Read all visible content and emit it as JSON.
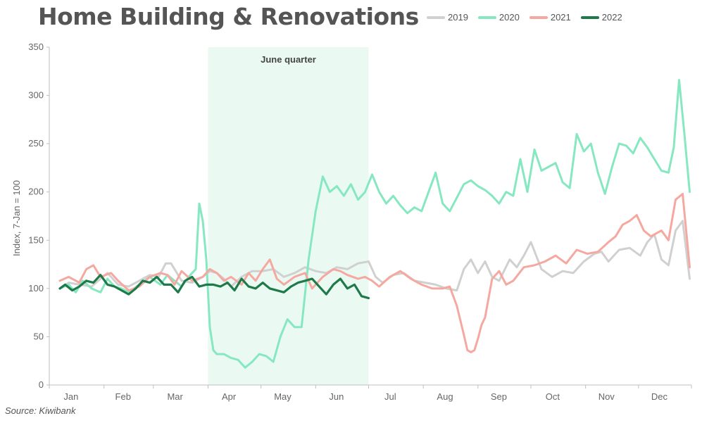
{
  "title": "Home Building & Renovations",
  "source": "Source: Kiwibank",
  "chart_data": {
    "type": "line",
    "ylabel": "Index, 7-Jan = 100",
    "xlabel": "",
    "ylim": [
      0,
      350
    ],
    "yticks": [
      0,
      50,
      100,
      150,
      200,
      250,
      300,
      350
    ],
    "xlim": [
      1,
      365
    ],
    "months": [
      {
        "label": "Jan",
        "day": 1
      },
      {
        "label": "Feb",
        "day": 32
      },
      {
        "label": "Mar",
        "day": 60
      },
      {
        "label": "Apr",
        "day": 91
      },
      {
        "label": "May",
        "day": 121
      },
      {
        "label": "Jun",
        "day": 152
      },
      {
        "label": "Jul",
        "day": 182
      },
      {
        "label": "Aug",
        "day": 213
      },
      {
        "label": "Sep",
        "day": 244
      },
      {
        "label": "Oct",
        "day": 274
      },
      {
        "label": "Nov",
        "day": 305
      },
      {
        "label": "Dec",
        "day": 335
      }
    ],
    "grid": false,
    "legend": "top",
    "shaded_region": {
      "label": "June quarter",
      "x": [
        91,
        182
      ],
      "color": "#eafaf3"
    },
    "series": [
      {
        "name": "2019",
        "color": "#d0d0d0",
        "width": 3,
        "x": [
          7,
          12,
          18,
          25,
          30,
          34,
          40,
          46,
          52,
          58,
          63,
          67,
          70,
          76,
          82,
          88,
          92,
          96,
          100,
          104,
          110,
          116,
          122,
          128,
          134,
          140,
          146,
          152,
          158,
          164,
          170,
          176,
          182,
          186,
          190,
          196,
          202,
          208,
          214,
          220,
          226,
          232,
          236,
          240,
          244,
          248,
          252,
          256,
          262,
          266,
          270,
          274,
          280,
          286,
          292,
          298,
          304,
          310,
          314,
          318,
          324,
          330,
          336,
          340,
          344,
          348,
          352,
          356,
          360,
          364
        ],
        "y": [
          100,
          106,
          104,
          102,
          110,
          116,
          104,
          102,
          108,
          114,
          112,
          126,
          126,
          108,
          106,
          112,
          118,
          116,
          110,
          102,
          112,
          118,
          118,
          120,
          112,
          116,
          122,
          118,
          116,
          122,
          120,
          126,
          128,
          112,
          106,
          114,
          116,
          108,
          106,
          104,
          100,
          98,
          120,
          130,
          116,
          128,
          112,
          108,
          130,
          122,
          134,
          148,
          120,
          112,
          118,
          116,
          128,
          136,
          138,
          128,
          140,
          142,
          134,
          148,
          156,
          130,
          124,
          160,
          170,
          110
        ]
      },
      {
        "name": "2020",
        "color": "#86e8c0",
        "width": 3,
        "x": [
          7,
          12,
          16,
          20,
          25,
          30,
          34,
          38,
          42,
          46,
          52,
          58,
          64,
          68,
          72,
          76,
          80,
          84,
          86,
          88,
          90,
          92,
          94,
          96,
          100,
          104,
          108,
          112,
          116,
          120,
          124,
          128,
          132,
          136,
          140,
          144,
          148,
          152,
          156,
          160,
          164,
          168,
          172,
          176,
          180,
          184,
          188,
          192,
          196,
          200,
          204,
          208,
          212,
          216,
          220,
          224,
          228,
          232,
          236,
          240,
          244,
          248,
          252,
          256,
          260,
          264,
          268,
          272,
          276,
          280,
          284,
          288,
          292,
          296,
          300,
          304,
          308,
          312,
          316,
          320,
          324,
          328,
          332,
          336,
          340,
          344,
          348,
          352,
          355,
          358,
          361,
          364
        ],
        "y": [
          100,
          104,
          96,
          108,
          100,
          96,
          110,
          102,
          100,
          96,
          104,
          112,
          104,
          114,
          108,
          102,
          112,
          120,
          188,
          170,
          130,
          60,
          36,
          32,
          32,
          28,
          26,
          18,
          24,
          32,
          30,
          24,
          50,
          68,
          60,
          60,
          130,
          180,
          216,
          200,
          206,
          196,
          208,
          192,
          200,
          218,
          200,
          188,
          196,
          186,
          178,
          184,
          180,
          200,
          220,
          188,
          180,
          194,
          208,
          212,
          206,
          202,
          196,
          188,
          200,
          196,
          234,
          200,
          244,
          222,
          226,
          230,
          210,
          204,
          260,
          242,
          250,
          220,
          198,
          226,
          250,
          248,
          240,
          256,
          246,
          234,
          222,
          220,
          246,
          316,
          260,
          200
        ]
      },
      {
        "name": "2021",
        "color": "#f5a8a0",
        "width": 3,
        "x": [
          7,
          12,
          18,
          22,
          26,
          30,
          36,
          40,
          46,
          52,
          58,
          64,
          68,
          72,
          76,
          82,
          88,
          92,
          96,
          100,
          104,
          110,
          114,
          118,
          122,
          126,
          130,
          134,
          140,
          146,
          150,
          156,
          162,
          166,
          170,
          176,
          180,
          184,
          188,
          194,
          200,
          206,
          212,
          218,
          224,
          228,
          232,
          236,
          238,
          240,
          242,
          244,
          246,
          248,
          252,
          256,
          260,
          264,
          270,
          276,
          282,
          288,
          294,
          300,
          306,
          312,
          318,
          322,
          326,
          330,
          334,
          338,
          342,
          348,
          352,
          356,
          360,
          364
        ],
        "y": [
          108,
          112,
          106,
          120,
          124,
          112,
          116,
          108,
          98,
          102,
          112,
          116,
          114,
          104,
          118,
          108,
          112,
          120,
          116,
          108,
          112,
          104,
          116,
          108,
          120,
          130,
          110,
          104,
          112,
          116,
          100,
          112,
          120,
          118,
          114,
          110,
          112,
          108,
          102,
          112,
          118,
          110,
          104,
          100,
          100,
          102,
          82,
          52,
          36,
          34,
          36,
          48,
          62,
          70,
          110,
          118,
          104,
          108,
          122,
          124,
          128,
          134,
          126,
          140,
          136,
          138,
          148,
          154,
          166,
          170,
          176,
          160,
          154,
          160,
          150,
          192,
          198,
          122
        ]
      },
      {
        "name": "2022",
        "color": "#1f7a4a",
        "width": 3.2,
        "x": [
          7,
          10,
          14,
          18,
          22,
          26,
          30,
          34,
          38,
          42,
          46,
          50,
          54,
          58,
          62,
          66,
          70,
          74,
          78,
          82,
          86,
          90,
          94,
          98,
          102,
          106,
          110,
          114,
          118,
          122,
          126,
          130,
          134,
          138,
          142,
          146,
          150,
          154,
          158,
          162,
          166,
          170,
          174,
          178,
          182
        ],
        "y": [
          100,
          104,
          98,
          102,
          108,
          106,
          114,
          104,
          102,
          98,
          94,
          100,
          108,
          106,
          112,
          104,
          104,
          96,
          108,
          112,
          102,
          104,
          104,
          102,
          106,
          98,
          110,
          102,
          100,
          106,
          100,
          98,
          96,
          102,
          106,
          108,
          110,
          102,
          94,
          104,
          110,
          100,
          104,
          92,
          90
        ]
      }
    ]
  }
}
